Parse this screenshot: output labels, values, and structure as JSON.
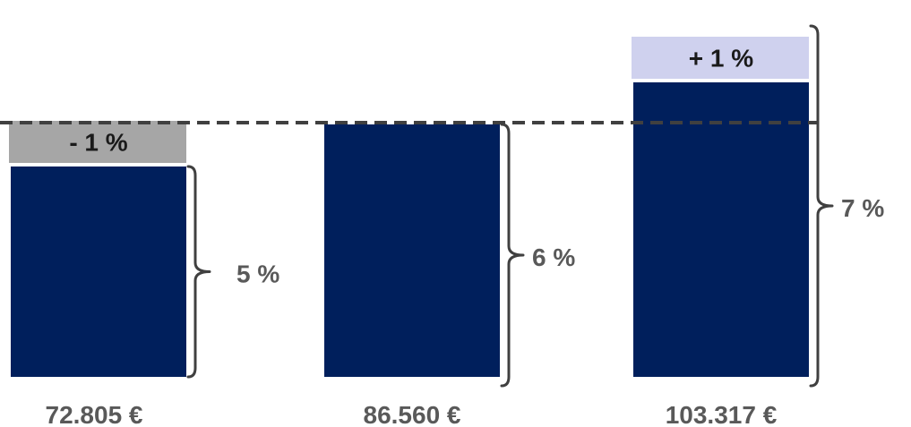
{
  "chart_data": {
    "type": "bar",
    "categories": [
      "72.805 €",
      "86.560 €",
      "103.317 €"
    ],
    "values": [
      5,
      6,
      7
    ],
    "value_labels": [
      "5 %",
      "6 %",
      "7 %"
    ],
    "reference_value": 6,
    "delta_values": [
      -1,
      0,
      1
    ],
    "delta_labels": [
      "- 1 %",
      "",
      "+ 1 %"
    ],
    "unit": "%",
    "ylim": [
      0,
      7.3
    ],
    "grid": false,
    "legend": "none",
    "colors": {
      "bar": "#001f5c",
      "negative_delta": "#a6a6a6",
      "positive_delta": "#cfd1ee",
      "reference_line": "#404040",
      "brace": "#404040",
      "label": "#595959"
    }
  }
}
